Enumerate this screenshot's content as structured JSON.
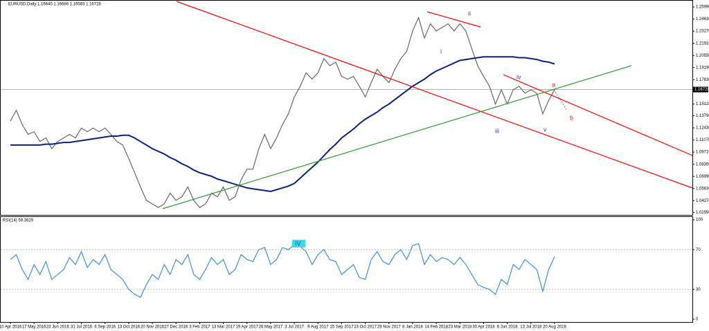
{
  "chart_data": [
    {
      "type": "line",
      "title": "EURUSD,Daily  1.16640 1.16686 1.16583 1.16728",
      "categories": [
        "10 Apr 2016",
        null,
        null,
        null,
        "17 May 2016",
        null,
        null,
        null,
        "23 Jun 2016",
        null,
        null,
        null,
        "31 Jul 2016",
        null,
        null,
        null,
        "6 Sep 2016",
        null,
        null,
        null,
        "13 Oct 2016",
        null,
        null,
        null,
        "20 Nov 2016",
        null,
        null,
        null,
        "27 Dec 2016",
        null,
        null,
        null,
        "3 Feb 2017",
        null,
        null,
        null,
        "13 Mar 2017",
        null,
        null,
        null,
        "19 Apr 2017",
        null,
        null,
        null,
        "26 May 2017",
        null,
        null,
        null,
        "3 Jul 2017",
        null,
        null,
        null,
        "9 Aug 2017",
        null,
        null,
        null,
        "15 Sep 2017",
        null,
        null,
        null,
        "23 Oct 2017",
        null,
        null,
        null,
        "29 Nov 2017",
        null,
        null,
        null,
        "8 Jan 2018",
        null,
        null,
        null,
        "14 Feb 2018",
        null,
        null,
        null,
        "23 Mar 2018",
        null,
        null,
        null,
        "30 Apr 2018",
        null,
        null,
        null,
        "6 Jun 2018",
        null,
        null,
        null,
        "13 Jul 2018",
        null,
        null,
        null,
        "20 Aug 2018"
      ],
      "series": [
        {
          "color": "#666666",
          "values": [
            1.132,
            1.144,
            1.128,
            1.117,
            1.12,
            1.109,
            1.113,
            1.101,
            1.109,
            1.113,
            1.117,
            1.113,
            1.124,
            1.12,
            1.124,
            1.12,
            1.124,
            1.117,
            1.109,
            1.105,
            1.09,
            1.074,
            1.058,
            1.043,
            1.039,
            1.035,
            1.039,
            1.051,
            1.043,
            1.047,
            1.058,
            1.043,
            1.035,
            1.039,
            1.051,
            1.047,
            1.058,
            1.043,
            1.047,
            1.066,
            1.078,
            1.078,
            1.101,
            1.117,
            1.101,
            1.113,
            1.128,
            1.14,
            1.159,
            1.171,
            1.186,
            1.179,
            1.186,
            1.202,
            1.194,
            1.198,
            1.182,
            1.179,
            1.182,
            1.171,
            1.159,
            1.175,
            1.19,
            1.182,
            1.175,
            1.19,
            1.202,
            1.21,
            1.233,
            1.248,
            1.225,
            1.241,
            1.233,
            1.237,
            1.241,
            1.233,
            1.241,
            1.233,
            1.213,
            1.194,
            1.182,
            1.171,
            1.151,
            1.167,
            1.151,
            1.167,
            1.171,
            1.163,
            1.167,
            1.163,
            1.14,
            1.155,
            1.167
          ]
        },
        {
          "color": "#0b1f80",
          "values": [
            1.105,
            1.105,
            1.105,
            1.105,
            1.105,
            1.105,
            1.106,
            1.106,
            1.107,
            1.108,
            1.108,
            1.109,
            1.11,
            1.111,
            1.112,
            1.113,
            1.114,
            1.115,
            1.115,
            1.116,
            1.116,
            1.113,
            1.109,
            1.105,
            1.101,
            1.098,
            1.095,
            1.091,
            1.088,
            1.084,
            1.081,
            1.077,
            1.074,
            1.072,
            1.07,
            1.067,
            1.065,
            1.063,
            1.061,
            1.059,
            1.057,
            1.056,
            1.055,
            1.054,
            1.053,
            1.055,
            1.057,
            1.059,
            1.062,
            1.068,
            1.074,
            1.08,
            1.086,
            1.093,
            1.1,
            1.106,
            1.113,
            1.118,
            1.123,
            1.129,
            1.134,
            1.138,
            1.142,
            1.147,
            1.151,
            1.156,
            1.161,
            1.166,
            1.171,
            1.175,
            1.179,
            1.184,
            1.188,
            1.191,
            1.194,
            1.197,
            1.2,
            1.201,
            1.202,
            1.203,
            1.204,
            1.204,
            1.204,
            1.204,
            1.204,
            1.204,
            1.203,
            1.203,
            1.202,
            1.201,
            1.199,
            1.198,
            1.196
          ]
        }
      ],
      "ylim": [
        1.0259,
        1.2677
      ],
      "yticks": [
        {
          "value": 1.2599,
          "label": "1.25990"
        },
        {
          "value": 1.2463,
          "label": "1.24630"
        },
        {
          "value": 1.2327,
          "label": "1.23270"
        },
        {
          "value": 1.2191,
          "label": "1.21910"
        },
        {
          "value": 1.2055,
          "label": "1.20550"
        },
        {
          "value": 1.1919,
          "label": "1.19190"
        },
        {
          "value": 1.1783,
          "label": "1.17830"
        },
        {
          "value": 1.1511,
          "label": "1.15110"
        },
        {
          "value": 1.1379,
          "label": "1.13790"
        },
        {
          "value": 1.1243,
          "label": "1.12430"
        },
        {
          "value": 1.1107,
          "label": "1.11070"
        },
        {
          "value": 1.0971,
          "label": "1.09710"
        },
        {
          "value": 1.0835,
          "label": "1.08350"
        },
        {
          "value": 1.0699,
          "label": "1.06990"
        },
        {
          "value": 1.0563,
          "label": "1.05630"
        },
        {
          "value": 1.0427,
          "label": "1.04270"
        },
        {
          "value": 1.0295,
          "label": "1.02950"
        }
      ],
      "last_price": 1.16728,
      "annotations": [
        "ii",
        "i",
        "iii",
        "iv",
        "v",
        "a",
        "b"
      ]
    },
    {
      "type": "line",
      "title": "RSI(14) 59.3629",
      "series": [
        {
          "color": "#3d8fe0",
          "values": [
            60,
            65,
            50,
            40,
            55,
            45,
            58,
            40,
            45,
            50,
            62,
            55,
            68,
            52,
            60,
            55,
            65,
            50,
            45,
            40,
            30,
            25,
            22,
            35,
            45,
            40,
            55,
            45,
            60,
            55,
            65,
            45,
            40,
            50,
            62,
            55,
            60,
            45,
            50,
            65,
            60,
            58,
            70,
            72,
            55,
            60,
            72,
            70,
            75,
            73,
            68,
            55,
            65,
            70,
            60,
            58,
            45,
            50,
            55,
            42,
            40,
            60,
            68,
            58,
            55,
            65,
            70,
            60,
            74,
            76,
            55,
            65,
            58,
            62,
            60,
            55,
            62,
            55,
            45,
            35,
            32,
            30,
            25,
            40,
            35,
            55,
            50,
            60,
            55,
            50,
            28,
            50,
            63
          ]
        }
      ],
      "ylim": [
        0,
        100
      ],
      "yticks": [
        100,
        70,
        30,
        0
      ],
      "levels": [
        70,
        30
      ],
      "annotations": [
        "IV"
      ]
    }
  ]
}
